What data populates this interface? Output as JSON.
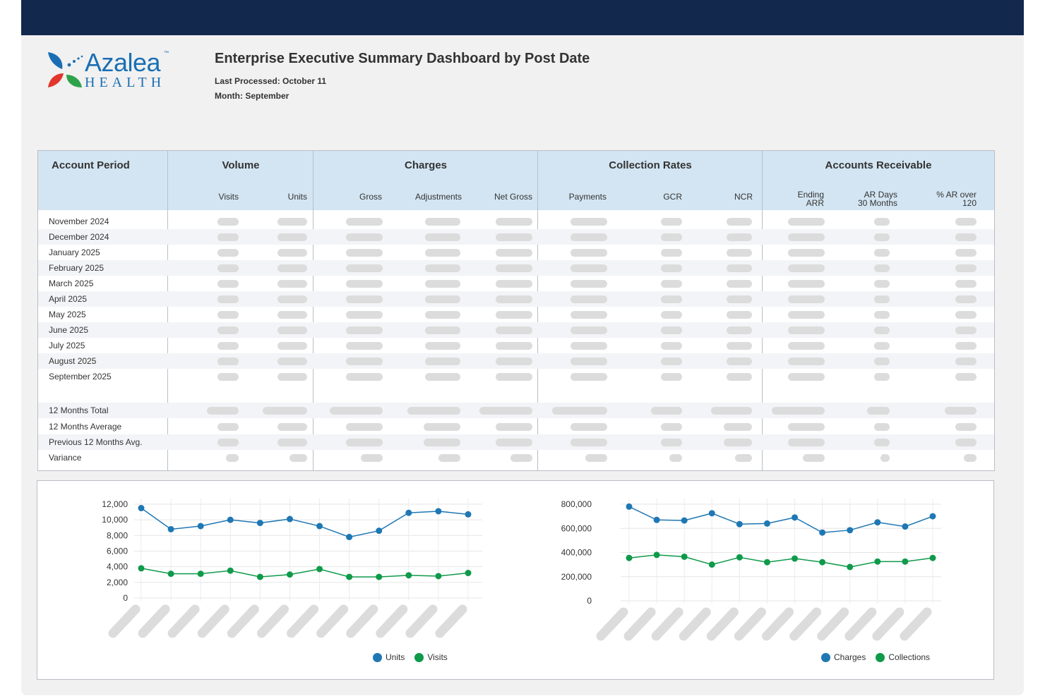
{
  "header": {
    "title": "Enterprise Executive Summary Dashboard by Post Date",
    "last_processed": "Last Processed: October 11",
    "month": "Month: September",
    "logo_text": "Azalea",
    "logo_sub": "HEALTH",
    "logo_tm": "™"
  },
  "colors": {
    "navy": "#13284d",
    "blue": "#1f77b4",
    "green": "#0f9a4a",
    "header_bg": "#d3e5f2"
  },
  "table": {
    "groups": {
      "account_period": "Account Period",
      "volume": "Volume",
      "charges": "Charges",
      "collection_rates": "Collection Rates",
      "accounts_receivable": "Accounts Receivable"
    },
    "subheaders": {
      "visits": "Visits",
      "units": "Units",
      "gross": "Gross",
      "adjustments": "Adjustments",
      "net_gross": "Net Gross",
      "payments": "Payments",
      "gcr": "GCR",
      "ncr": "NCR",
      "ending_arr_1": "Ending",
      "ending_arr_2": "ARR",
      "ar_days_1": "AR Days",
      "ar_days_2": "30 Months",
      "pct_ar_1": "% AR over",
      "pct_ar_2": "120"
    },
    "rows": [
      "November 2024",
      "December 2024",
      "January 2025",
      "February 2025",
      "March 2025",
      "April 2025",
      "May 2025",
      "June 2025",
      "July 2025",
      "August 2025",
      "September 2025"
    ],
    "summary_rows": [
      "12 Months Total",
      "12 Months Average",
      "Previous 12 Months Avg.",
      "Variance"
    ]
  },
  "chart_data": [
    {
      "type": "line",
      "ylim": [
        0,
        12000
      ],
      "yticks": [
        "12,000",
        "10,000",
        "8,000",
        "6,000",
        "4,000",
        "2,000",
        "0"
      ],
      "series": [
        {
          "name": "Units",
          "color": "#1f77b4",
          "values": [
            11500,
            8800,
            9200,
            10000,
            9600,
            10100,
            9200,
            7800,
            8600,
            10900,
            11100,
            10700
          ]
        },
        {
          "name": "Visits",
          "color": "#0f9a4a",
          "values": [
            3800,
            3100,
            3100,
            3500,
            2700,
            3000,
            3700,
            2700,
            2700,
            2900,
            2800,
            3200
          ]
        }
      ]
    },
    {
      "type": "line",
      "ylim": [
        0,
        800000
      ],
      "yticks": [
        "800,000",
        "600,000",
        "400,000",
        "200,000",
        "0"
      ],
      "series": [
        {
          "name": "Charges",
          "color": "#1f77b4",
          "values": [
            780000,
            670000,
            665000,
            725000,
            635000,
            640000,
            690000,
            565000,
            585000,
            650000,
            615000,
            700000
          ]
        },
        {
          "name": "Collections",
          "color": "#0f9a4a",
          "values": [
            355000,
            380000,
            365000,
            300000,
            360000,
            320000,
            350000,
            320000,
            280000,
            325000,
            325000,
            355000
          ]
        }
      ]
    }
  ]
}
